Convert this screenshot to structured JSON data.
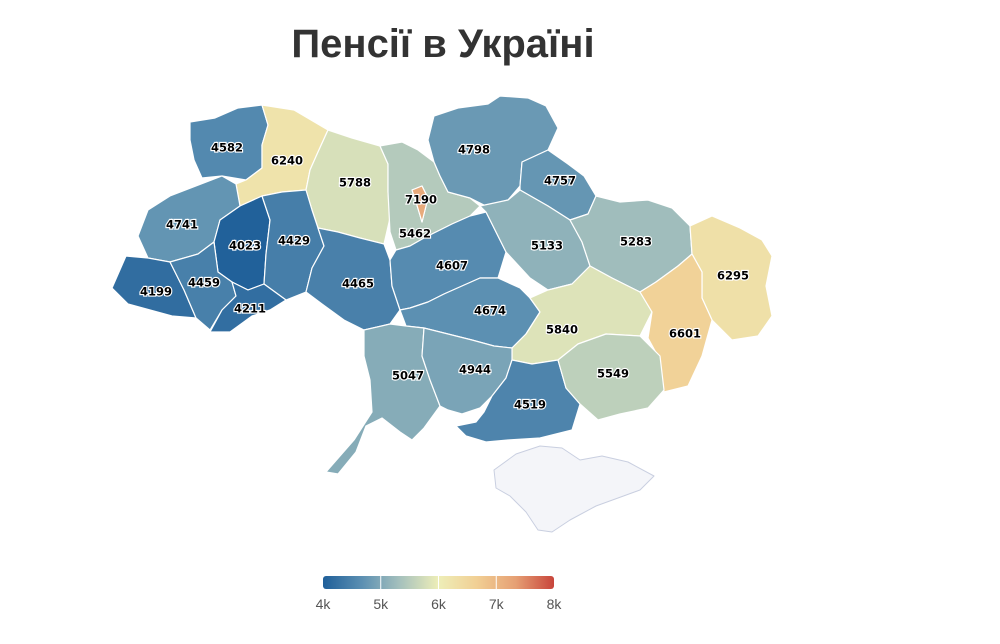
{
  "title": "Пенсії в Україні",
  "color_scale": {
    "min": 4000,
    "max": 8000,
    "stops": [
      "#1f5f99",
      "#5b8fb2",
      "#a6c1bd",
      "#eeeeb8",
      "#f1cf94",
      "#e6a074",
      "#c8453b"
    ],
    "no_data_color": "#f4f5f9"
  },
  "legend": {
    "ticks": [
      {
        "value": 4000,
        "label": "4k"
      },
      {
        "value": 5000,
        "label": "5k"
      },
      {
        "value": 6000,
        "label": "6k"
      },
      {
        "value": 7000,
        "label": "7k"
      },
      {
        "value": 8000,
        "label": "8k"
      }
    ]
  },
  "regions": [
    {
      "id": "volyn",
      "value": 4582,
      "label": "4582"
    },
    {
      "id": "rivne",
      "value": 6240,
      "label": "6240"
    },
    {
      "id": "zhytomyr",
      "value": 5788,
      "label": "5788"
    },
    {
      "id": "kyiv-city",
      "value": 7190,
      "label": "7190"
    },
    {
      "id": "kyiv-oblast",
      "value": 5462,
      "label": "5462"
    },
    {
      "id": "chernihiv",
      "value": 4798,
      "label": "4798"
    },
    {
      "id": "sumy",
      "value": 4757,
      "label": "4757"
    },
    {
      "id": "lviv",
      "value": 4741,
      "label": "4741"
    },
    {
      "id": "ternopil",
      "value": 4023,
      "label": "4023"
    },
    {
      "id": "khmelnytskyi",
      "value": 4429,
      "label": "4429"
    },
    {
      "id": "zakarpattia",
      "value": 4199,
      "label": "4199"
    },
    {
      "id": "ivano-frankivsk",
      "value": 4459,
      "label": "4459"
    },
    {
      "id": "chernivtsi",
      "value": 4211,
      "label": "4211"
    },
    {
      "id": "vinnytsia",
      "value": 4465,
      "label": "4465"
    },
    {
      "id": "cherkasy",
      "value": 4607,
      "label": "4607"
    },
    {
      "id": "poltava",
      "value": 5133,
      "label": "5133"
    },
    {
      "id": "kharkiv",
      "value": 5283,
      "label": "5283"
    },
    {
      "id": "luhansk",
      "value": 6295,
      "label": "6295"
    },
    {
      "id": "kirovohrad",
      "value": 4674,
      "label": "4674"
    },
    {
      "id": "dnipropetrovsk",
      "value": 5840,
      "label": "5840"
    },
    {
      "id": "donetsk",
      "value": 6601,
      "label": "6601"
    },
    {
      "id": "odesa",
      "value": 5047,
      "label": "5047"
    },
    {
      "id": "mykolaiv",
      "value": 4944,
      "label": "4944"
    },
    {
      "id": "kherson",
      "value": 4519,
      "label": "4519"
    },
    {
      "id": "zaporizhzhia",
      "value": 5549,
      "label": "5549"
    },
    {
      "id": "crimea",
      "value": null,
      "label": ""
    }
  ]
}
